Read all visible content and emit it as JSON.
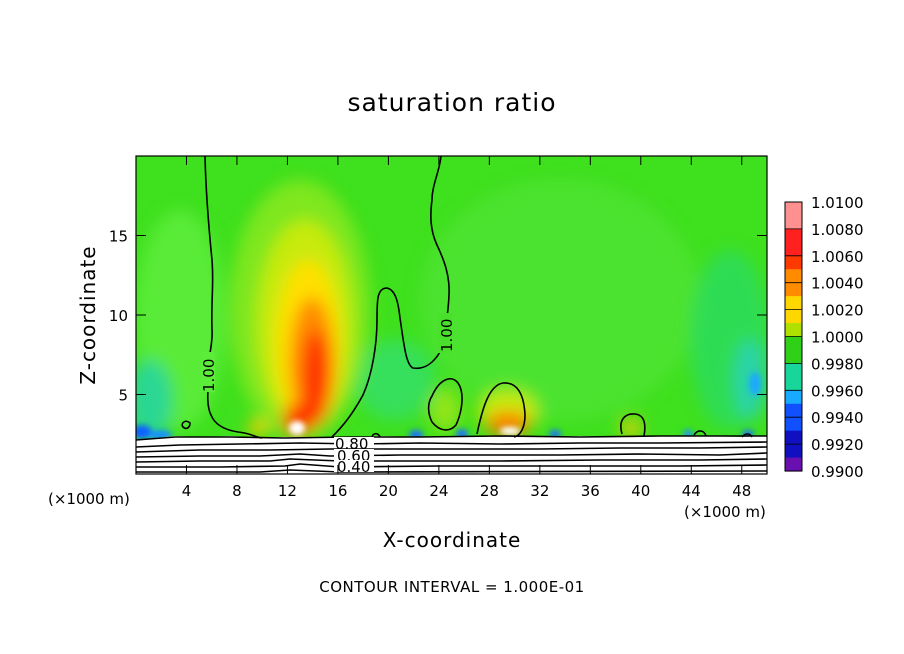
{
  "chart_data": {
    "type": "heatmap",
    "title": "saturation ratio",
    "xlabel": "X-coordinate",
    "ylabel": "Z-coordinate",
    "x_unit": "(×1000 m)",
    "xlim": [
      0,
      50
    ],
    "ylim": [
      0,
      20
    ],
    "x_ticks": [
      "4",
      "8",
      "12",
      "16",
      "20",
      "24",
      "28",
      "32",
      "36",
      "40",
      "44",
      "48"
    ],
    "y_ticks": [
      "5",
      "10",
      "15"
    ],
    "colorbar": {
      "levels": [
        "1.0100",
        "1.0080",
        "1.0060",
        "1.0040",
        "1.0020",
        "1.0000",
        "0.9980",
        "0.9960",
        "0.9940",
        "0.9920",
        "0.9900"
      ]
    },
    "contour_labels": [
      "1.00",
      "1.00",
      "0.80",
      "0.60",
      "0.40"
    ],
    "footnote": "CONTOUR INTERVAL = 1.000E-01"
  }
}
